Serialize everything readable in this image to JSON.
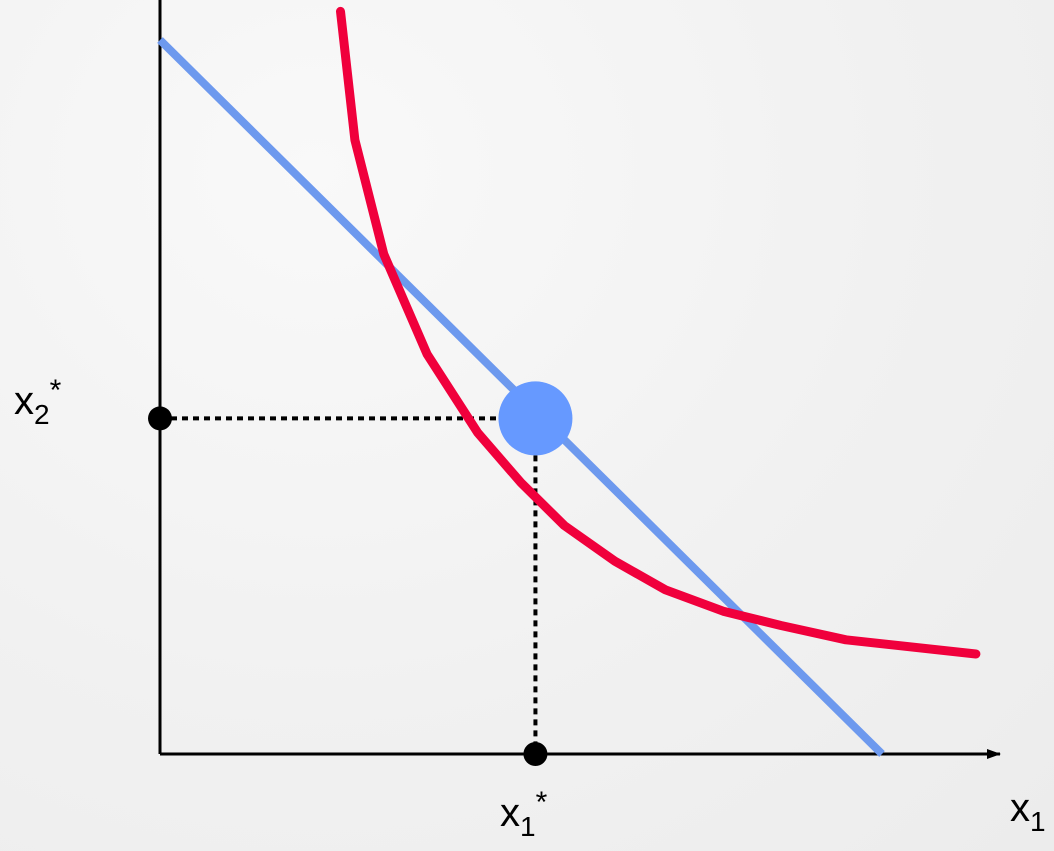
{
  "labels": {
    "x_axis": {
      "base": "x",
      "sub": "1"
    },
    "x_star": {
      "base": "x",
      "sub": "1",
      "sup": "*"
    },
    "y_star": {
      "base": "x",
      "sub": "2",
      "sup": "*"
    }
  },
  "colors": {
    "indifference_curve": "#f0003c",
    "budget_line": "#6d99ee",
    "optimum_point": "#6699ff",
    "axes": "#000000",
    "background": "#f3f3f3"
  },
  "chart_data": {
    "type": "line",
    "title": "",
    "xlabel": "x1",
    "ylabel": "",
    "xlim": [
      0,
      1
    ],
    "ylim": [
      0,
      1
    ],
    "series": [
      {
        "values": [
          [
            0.0,
            1.0
          ],
          [
            1.0,
            0.0
          ]
        ]
      },
      {
        "values": [
          [
            0.25,
            1.04
          ],
          [
            0.27,
            0.86
          ],
          [
            0.31,
            0.7
          ],
          [
            0.37,
            0.56
          ],
          [
            0.44,
            0.45
          ],
          [
            0.5,
            0.38
          ],
          [
            0.56,
            0.32
          ],
          [
            0.63,
            0.27
          ],
          [
            0.7,
            0.23
          ],
          [
            0.78,
            0.2
          ],
          [
            0.86,
            0.18
          ],
          [
            0.95,
            0.16
          ],
          [
            1.13,
            0.14
          ]
        ]
      }
    ],
    "optimum": {
      "x": 0.52,
      "y": 0.47
    },
    "grid": false
  }
}
